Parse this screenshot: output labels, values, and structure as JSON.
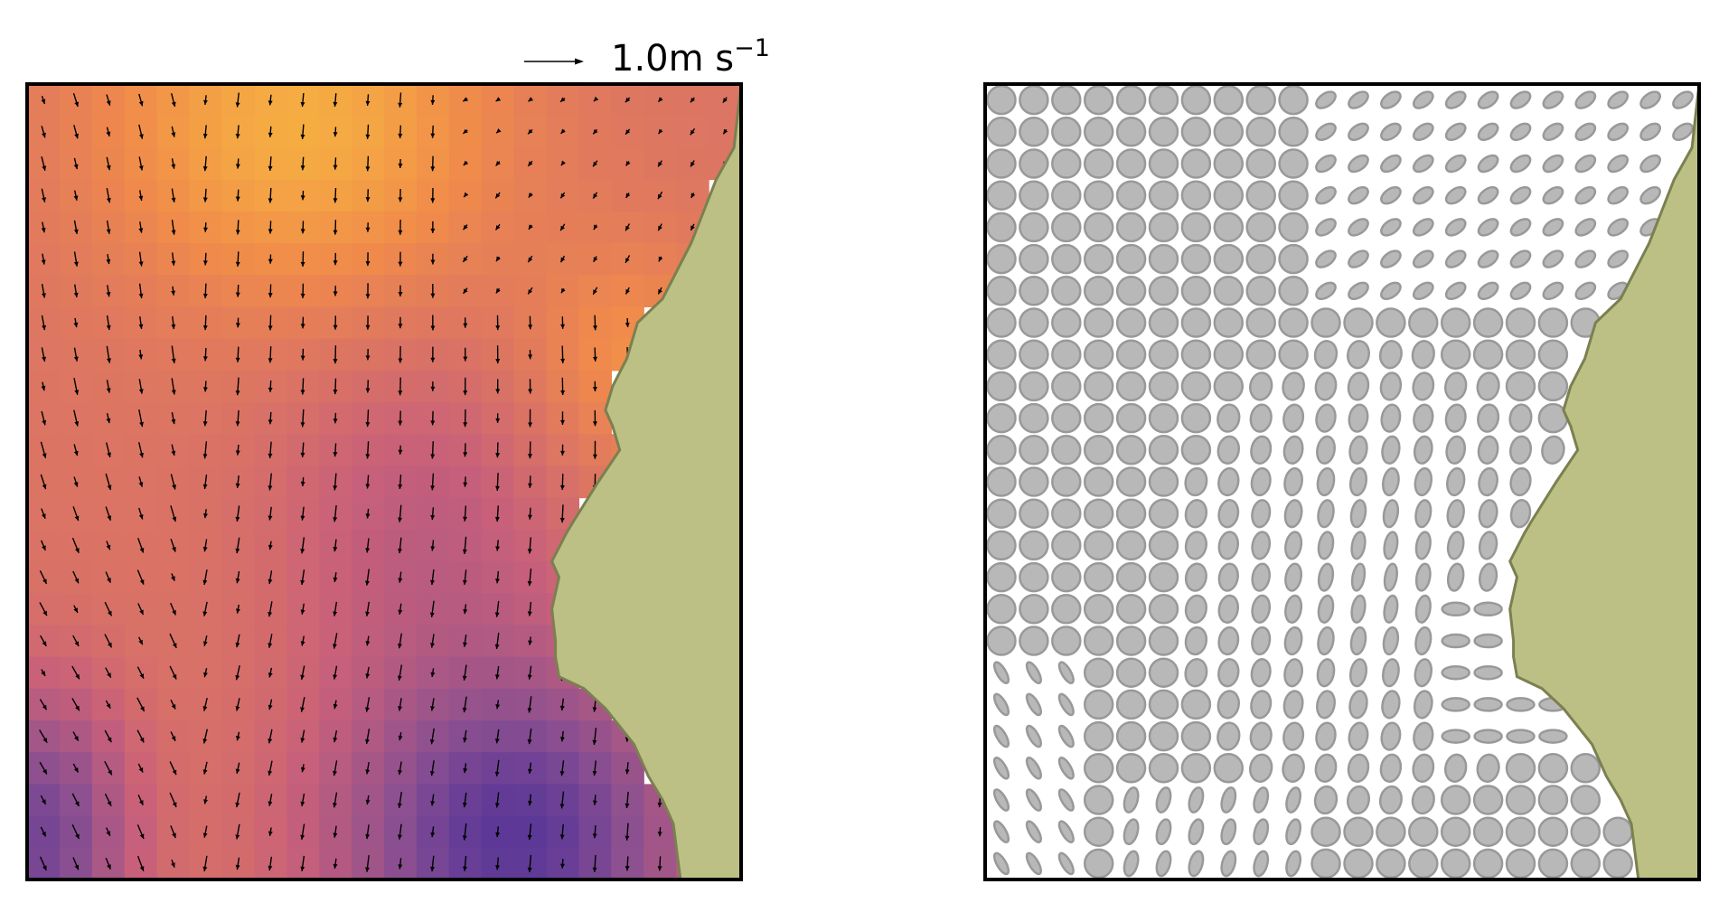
{
  "chart_data": [
    {
      "type": "heatmap",
      "panel": "left",
      "title": "",
      "xlabel": "",
      "ylabel": "",
      "quiver_key": {
        "value": 1.0,
        "label": "1.0m s",
        "unit_exponent": "−1"
      },
      "grid": {
        "cols": 22,
        "rows": 25
      },
      "colormap": [
        "#4a2f9a",
        "#8a4f91",
        "#c8607a",
        "#f08a4b",
        "#f9c43c"
      ],
      "land_color": "#bcc084",
      "land_edge_color": "#7a8050"
    },
    {
      "type": "ellipses",
      "panel": "right",
      "title": "",
      "xlabel": "",
      "ylabel": "",
      "grid": {
        "cols": 22,
        "rows": 25
      },
      "ellipse_fill": "#b8b8b8",
      "ellipse_edge": "#999999",
      "land_color": "#bcc084",
      "land_edge_color": "#7a8050"
    }
  ]
}
